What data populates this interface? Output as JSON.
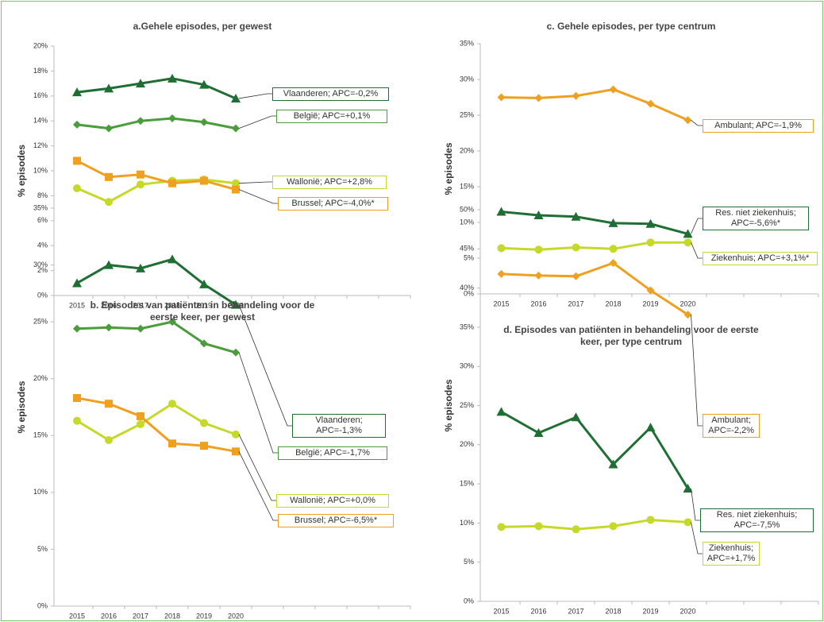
{
  "chart_data": [
    {
      "type": "line",
      "title": "a.Gehele episodes, per gewest",
      "ylabel": "% episodes",
      "categories": [
        "2015",
        "2016",
        "2017",
        "2018",
        "2019",
        "2020",
        null,
        null,
        null,
        null,
        null
      ],
      "ylim": [
        0,
        20
      ],
      "yticks": [
        {
          "value": 0,
          "label": "0%"
        },
        {
          "value": 2,
          "label": "2%"
        },
        {
          "value": 4,
          "label": "4%"
        },
        {
          "value": 6,
          "label": "6%"
        },
        {
          "value": 8,
          "label": "8%"
        },
        {
          "value": 10,
          "label": "10%"
        },
        {
          "value": 12,
          "label": "12%"
        },
        {
          "value": 14,
          "label": "14%"
        },
        {
          "value": 16,
          "label": "16%"
        },
        {
          "value": 18,
          "label": "18%"
        },
        {
          "value": 20,
          "label": "20%"
        }
      ],
      "series": [
        {
          "name": "Vlaanderen; APC=-0,2%",
          "color": "#1f6e33",
          "marker": "triangle",
          "values": [
            16.3,
            16.6,
            17.0,
            17.4,
            16.9,
            15.8,
            null,
            null,
            null,
            null,
            null
          ]
        },
        {
          "name": "België; APC=+0,1%",
          "color": "#4a9c3c",
          "marker": "diamond",
          "values": [
            13.7,
            13.4,
            14.0,
            14.2,
            13.9,
            13.4,
            null,
            null,
            null,
            null,
            null
          ]
        },
        {
          "name": "Wallonië; APC=+2,8%",
          "color": "#c5d92a",
          "marker": "circle",
          "values": [
            8.6,
            7.5,
            8.9,
            9.2,
            9.3,
            9.0,
            null,
            null,
            null,
            null,
            null
          ]
        },
        {
          "name": "Brussel; APC=-4,0%*",
          "color": "#f0a020",
          "marker": "square",
          "values": [
            10.8,
            9.5,
            9.7,
            9.0,
            9.2,
            8.5,
            null,
            null,
            null,
            null,
            null
          ]
        }
      ]
    },
    {
      "type": "line",
      "title": "b. Episodes van patiënten in behandeling voor de eerste keer, per gewest",
      "ylabel": "% episodes",
      "categories": [
        "2015",
        "2016",
        "2017",
        "2018",
        "2019",
        "2020",
        null,
        null,
        null,
        null,
        null
      ],
      "ylim": [
        0,
        35
      ],
      "yticks": [
        {
          "value": 0,
          "label": "0%"
        },
        {
          "value": 5,
          "label": "5%"
        },
        {
          "value": 10,
          "label": "10%"
        },
        {
          "value": 15,
          "label": "15%"
        },
        {
          "value": 20,
          "label": "20%"
        },
        {
          "value": 25,
          "label": "25%"
        },
        {
          "value": 30,
          "label": "30%"
        },
        {
          "value": 35,
          "label": "35%"
        }
      ],
      "series": [
        {
          "name": "Vlaanderen; APC=-1,3%",
          "color": "#1f6e33",
          "marker": "triangle",
          "values": [
            28.4,
            30.0,
            29.7,
            30.5,
            28.3,
            26.5,
            null,
            null,
            null,
            null,
            null
          ]
        },
        {
          "name": "België; APC=-1,7%",
          "color": "#4a9c3c",
          "marker": "diamond",
          "values": [
            24.4,
            24.5,
            24.4,
            25.0,
            23.1,
            22.3,
            null,
            null,
            null,
            null,
            null
          ]
        },
        {
          "name": "Wallonië; APC=+0,0%",
          "color": "#c5d92a",
          "marker": "circle",
          "values": [
            16.3,
            14.6,
            16.0,
            17.8,
            16.1,
            15.1,
            null,
            null,
            null,
            null,
            null
          ]
        },
        {
          "name": "Brussel; APC=-6,5%*",
          "color": "#f0a020",
          "marker": "square",
          "values": [
            18.3,
            17.8,
            16.7,
            14.3,
            14.1,
            13.6,
            null,
            null,
            null,
            null,
            null
          ]
        }
      ]
    },
    {
      "type": "line",
      "title": "c. Gehele episodes, per type centrum",
      "ylabel": "% episodes",
      "categories": [
        "2015",
        "2016",
        "2017",
        "2018",
        "2019",
        "2020",
        null,
        null,
        null
      ],
      "ylim": [
        0,
        35
      ],
      "yticks": [
        {
          "value": 0,
          "label": "0%"
        },
        {
          "value": 5,
          "label": "5%"
        },
        {
          "value": 10,
          "label": "10%"
        },
        {
          "value": 15,
          "label": "15%"
        },
        {
          "value": 20,
          "label": "20%"
        },
        {
          "value": 25,
          "label": "25%"
        },
        {
          "value": 30,
          "label": "30%"
        },
        {
          "value": 35,
          "label": "35%"
        }
      ],
      "series": [
        {
          "name": "Ambulant; APC=-1,9%",
          "color": "#f0a020",
          "marker": "diamond",
          "values": [
            27.5,
            27.4,
            27.7,
            28.6,
            26.6,
            24.3,
            null,
            null,
            null
          ]
        },
        {
          "name": "Res. niet ziekenhuis; APC=-5,6%*",
          "color": "#1f6e33",
          "marker": "triangle",
          "values": [
            11.5,
            11.0,
            10.8,
            9.9,
            9.8,
            8.4,
            null,
            null,
            null
          ]
        },
        {
          "name": "Ziekenhuis; APC=+3,1%*",
          "color": "#c5d92a",
          "marker": "circle",
          "values": [
            6.4,
            6.2,
            6.5,
            6.3,
            7.2,
            7.2,
            null,
            null,
            null
          ]
        }
      ]
    },
    {
      "type": "line",
      "title": "d. Episodes van patiënten in behandeling voor de eerste keer, per type centrum",
      "ylabel": "% episodes",
      "categories": [
        "2015",
        "2016",
        "2017",
        "2018",
        "2019",
        "2020",
        null,
        null,
        null
      ],
      "ylim": [
        0,
        50
      ],
      "yticks": [
        {
          "value": 0,
          "label": "0%"
        },
        {
          "value": 5,
          "label": "5%"
        },
        {
          "value": 10,
          "label": "10%"
        },
        {
          "value": 15,
          "label": "15%"
        },
        {
          "value": 20,
          "label": "20%"
        },
        {
          "value": 25,
          "label": "25%"
        },
        {
          "value": 30,
          "label": "30%"
        },
        {
          "value": 35,
          "label": "35%"
        },
        {
          "value": 40,
          "label": "40%"
        },
        {
          "value": 45,
          "label": "45%"
        },
        {
          "value": 50,
          "label": "50%"
        }
      ],
      "series": [
        {
          "name": "Ambulant; APC=-2,2%",
          "color": "#f0a020",
          "marker": "diamond",
          "values": [
            41.8,
            41.6,
            41.5,
            43.2,
            39.7,
            36.6,
            null,
            null,
            null
          ]
        },
        {
          "name": "Res. niet ziekenhuis; APC=-7,5%",
          "color": "#1f6e33",
          "marker": "triangle",
          "values": [
            24.2,
            21.5,
            23.5,
            17.5,
            22.2,
            14.4,
            null,
            null,
            null
          ]
        },
        {
          "name": "Ziekenhuis; APC=+1,7%",
          "color": "#c5d92a",
          "marker": "circle",
          "values": [
            9.5,
            9.6,
            9.2,
            9.6,
            10.4,
            10.1,
            null,
            null,
            null
          ]
        }
      ]
    }
  ]
}
